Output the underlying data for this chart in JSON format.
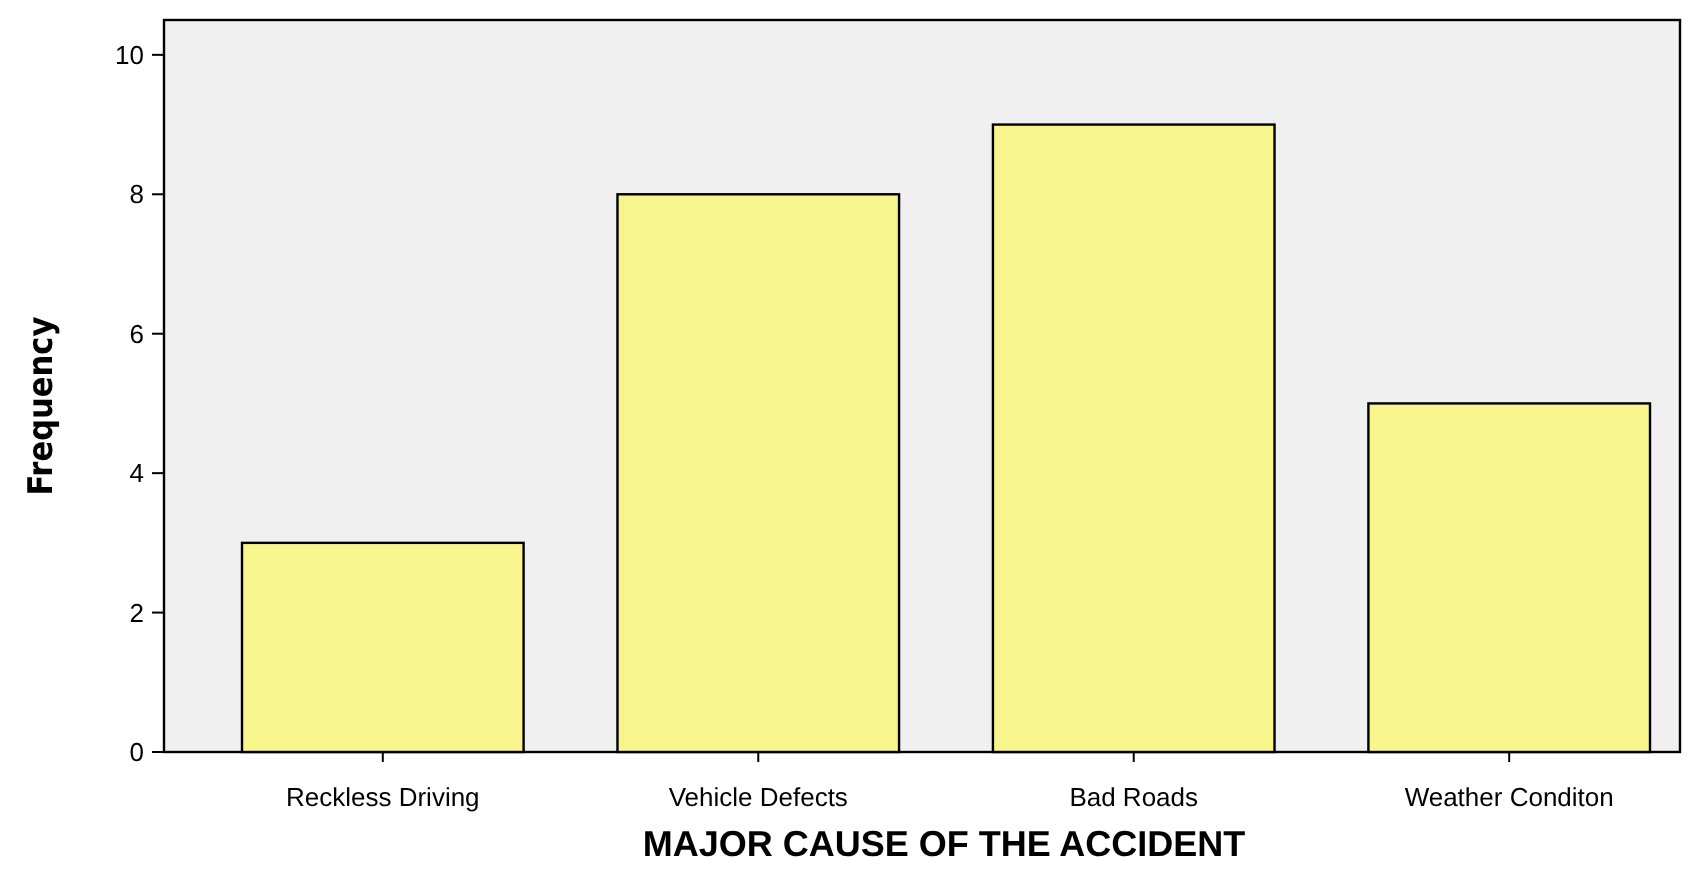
{
  "chart_data": {
    "type": "bar",
    "xlabel": "MAJOR CAUSE OF THE ACCIDENT",
    "ylabel": "Frequency",
    "categories": [
      "Reckless Driving",
      "Vehicle Defects",
      "Bad Roads",
      "Weather Conditon"
    ],
    "values": [
      3,
      8,
      9,
      5
    ],
    "color": "#f8f58c",
    "ylim": [
      0,
      10.5
    ],
    "yticks": [
      0,
      2,
      4,
      6,
      8,
      10
    ],
    "grid": false
  }
}
